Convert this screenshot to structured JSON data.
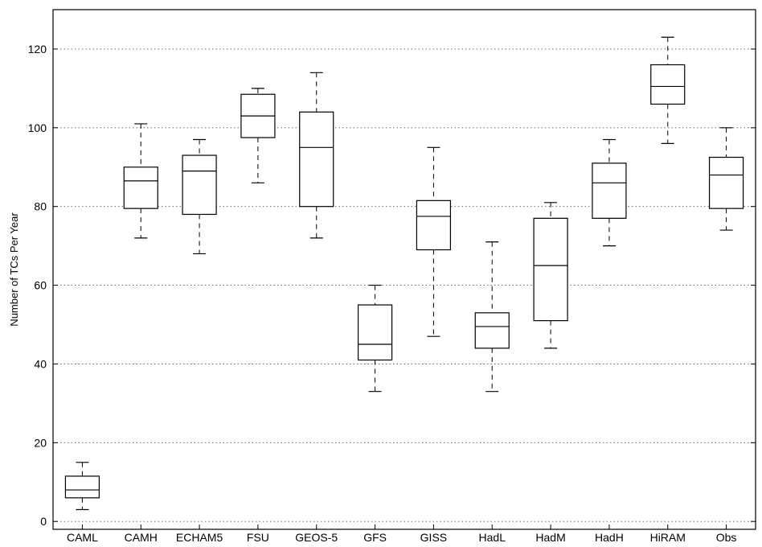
{
  "chart_data": {
    "type": "boxplot",
    "title": "",
    "xlabel": "",
    "ylabel": "Number of TCs Per Year",
    "ylim": [
      -2,
      130
    ],
    "yticks": [
      0,
      20,
      40,
      60,
      80,
      100,
      120
    ],
    "grid": "horizontal-dotted",
    "categories": [
      "CAML",
      "CAMH",
      "ECHAM5",
      "FSU",
      "GEOS-5",
      "GFS",
      "GISS",
      "HadL",
      "HadM",
      "HadH",
      "HiRAM",
      "Obs"
    ],
    "boxes": [
      {
        "label": "CAML",
        "whisker_low": 3,
        "q1": 6,
        "median": 8,
        "q3": 11.5,
        "whisker_high": 15
      },
      {
        "label": "CAMH",
        "whisker_low": 72,
        "q1": 79.5,
        "median": 86.5,
        "q3": 90,
        "whisker_high": 101
      },
      {
        "label": "ECHAM5",
        "whisker_low": 68,
        "q1": 78,
        "median": 89,
        "q3": 93,
        "whisker_high": 97
      },
      {
        "label": "FSU",
        "whisker_low": 86,
        "q1": 97.5,
        "median": 103,
        "q3": 108.5,
        "whisker_high": 110
      },
      {
        "label": "GEOS-5",
        "whisker_low": 72,
        "q1": 80,
        "median": 95,
        "q3": 104,
        "whisker_high": 114
      },
      {
        "label": "GFS",
        "whisker_low": 33,
        "q1": 41,
        "median": 45,
        "q3": 55,
        "whisker_high": 60
      },
      {
        "label": "GISS",
        "whisker_low": 47,
        "q1": 69,
        "median": 77.5,
        "q3": 81.5,
        "whisker_high": 95
      },
      {
        "label": "HadL",
        "whisker_low": 33,
        "q1": 44,
        "median": 49.5,
        "q3": 53,
        "whisker_high": 71
      },
      {
        "label": "HadM",
        "whisker_low": 44,
        "q1": 51,
        "median": 65,
        "q3": 77,
        "whisker_high": 81
      },
      {
        "label": "HadH",
        "whisker_low": 70,
        "q1": 77,
        "median": 86,
        "q3": 91,
        "whisker_high": 97
      },
      {
        "label": "HiRAM",
        "whisker_low": 96,
        "q1": 106,
        "median": 110.5,
        "q3": 116,
        "whisker_high": 123
      },
      {
        "label": "Obs",
        "whisker_low": 74,
        "q1": 79.5,
        "median": 88,
        "q3": 92.5,
        "whisker_high": 100
      }
    ]
  }
}
